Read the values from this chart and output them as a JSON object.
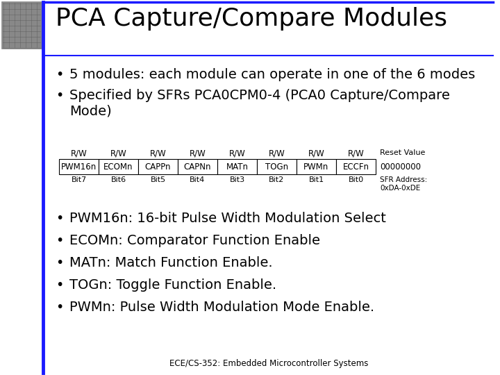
{
  "title": "PCA Capture/Compare Modules",
  "title_fontsize": 26,
  "title_font": "Times New Roman",
  "bg_color": "#ffffff",
  "header_line_color": "#1a1aff",
  "bullet_points_top": [
    "5 modules: each module can operate in one of the 6 modes",
    "Specified by SFRs PCA0CPM0-4 (PCA0 Capture/Compare\nMode)"
  ],
  "bullet_points_bottom": [
    "PWM16n: 16-bit Pulse Width Modulation Select",
    "ECOMn: Comparator Function Enable",
    "MATn: Match Function Enable.",
    "TOGn: Toggle Function Enable.",
    "PWMn: Pulse Width Modulation Mode Enable."
  ],
  "register_labels_top": [
    "R/W",
    "R/W",
    "R/W",
    "R/W",
    "R/W",
    "R/W",
    "R/W",
    "R/W"
  ],
  "register_fields": [
    "PWM16n",
    "ECOMn",
    "CAPPn",
    "CAPNn",
    "MATn",
    "TOGn",
    "PWMn",
    "ECCFn"
  ],
  "register_bits": [
    "Bit7",
    "Bit6",
    "Bit5",
    "Bit4",
    "Bit3",
    "Bit2",
    "Bit1",
    "Bit0"
  ],
  "reset_value": "00000000",
  "sfr_address": "SFR Address:\n0xDA-0xDE",
  "reset_label": "Reset Value",
  "footer": "ECE/CS-352: Embedded Microcontroller Systems",
  "footer_fontsize": 8.5,
  "body_fontsize": 14,
  "register_fontsize": 8.5
}
